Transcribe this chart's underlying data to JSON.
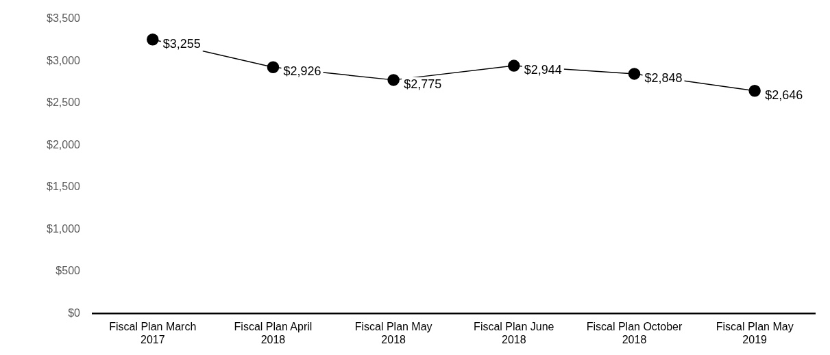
{
  "chart_data": {
    "type": "line",
    "categories": [
      "Fiscal Plan March 2017",
      "Fiscal Plan April 2018",
      "Fiscal Plan May 2018",
      "Fiscal Plan June 2018",
      "Fiscal Plan October 2018",
      "Fiscal Plan May 2019"
    ],
    "series": [
      {
        "color": "#000000",
        "values": [
          3255,
          2926,
          2775,
          2944,
          2848,
          2646
        ],
        "value_labels": [
          "$3,255",
          "$2,926",
          "$2,775",
          "$2,944",
          "$2,848",
          "$2,646"
        ]
      }
    ],
    "ylim": [
      0,
      3500
    ],
    "yticks": [
      {
        "value": 0,
        "label": "$0"
      },
      {
        "value": 500,
        "label": "$500"
      },
      {
        "value": 1000,
        "label": "$1,000"
      },
      {
        "value": 1500,
        "label": "$1,500"
      },
      {
        "value": 2000,
        "label": "$2,000"
      },
      {
        "value": 2500,
        "label": "$2,500"
      },
      {
        "value": 3000,
        "label": "$3,000"
      },
      {
        "value": 3500,
        "label": "$3,500"
      }
    ],
    "grid": false,
    "legend": false,
    "marker": "circle",
    "line_style": "solid"
  }
}
